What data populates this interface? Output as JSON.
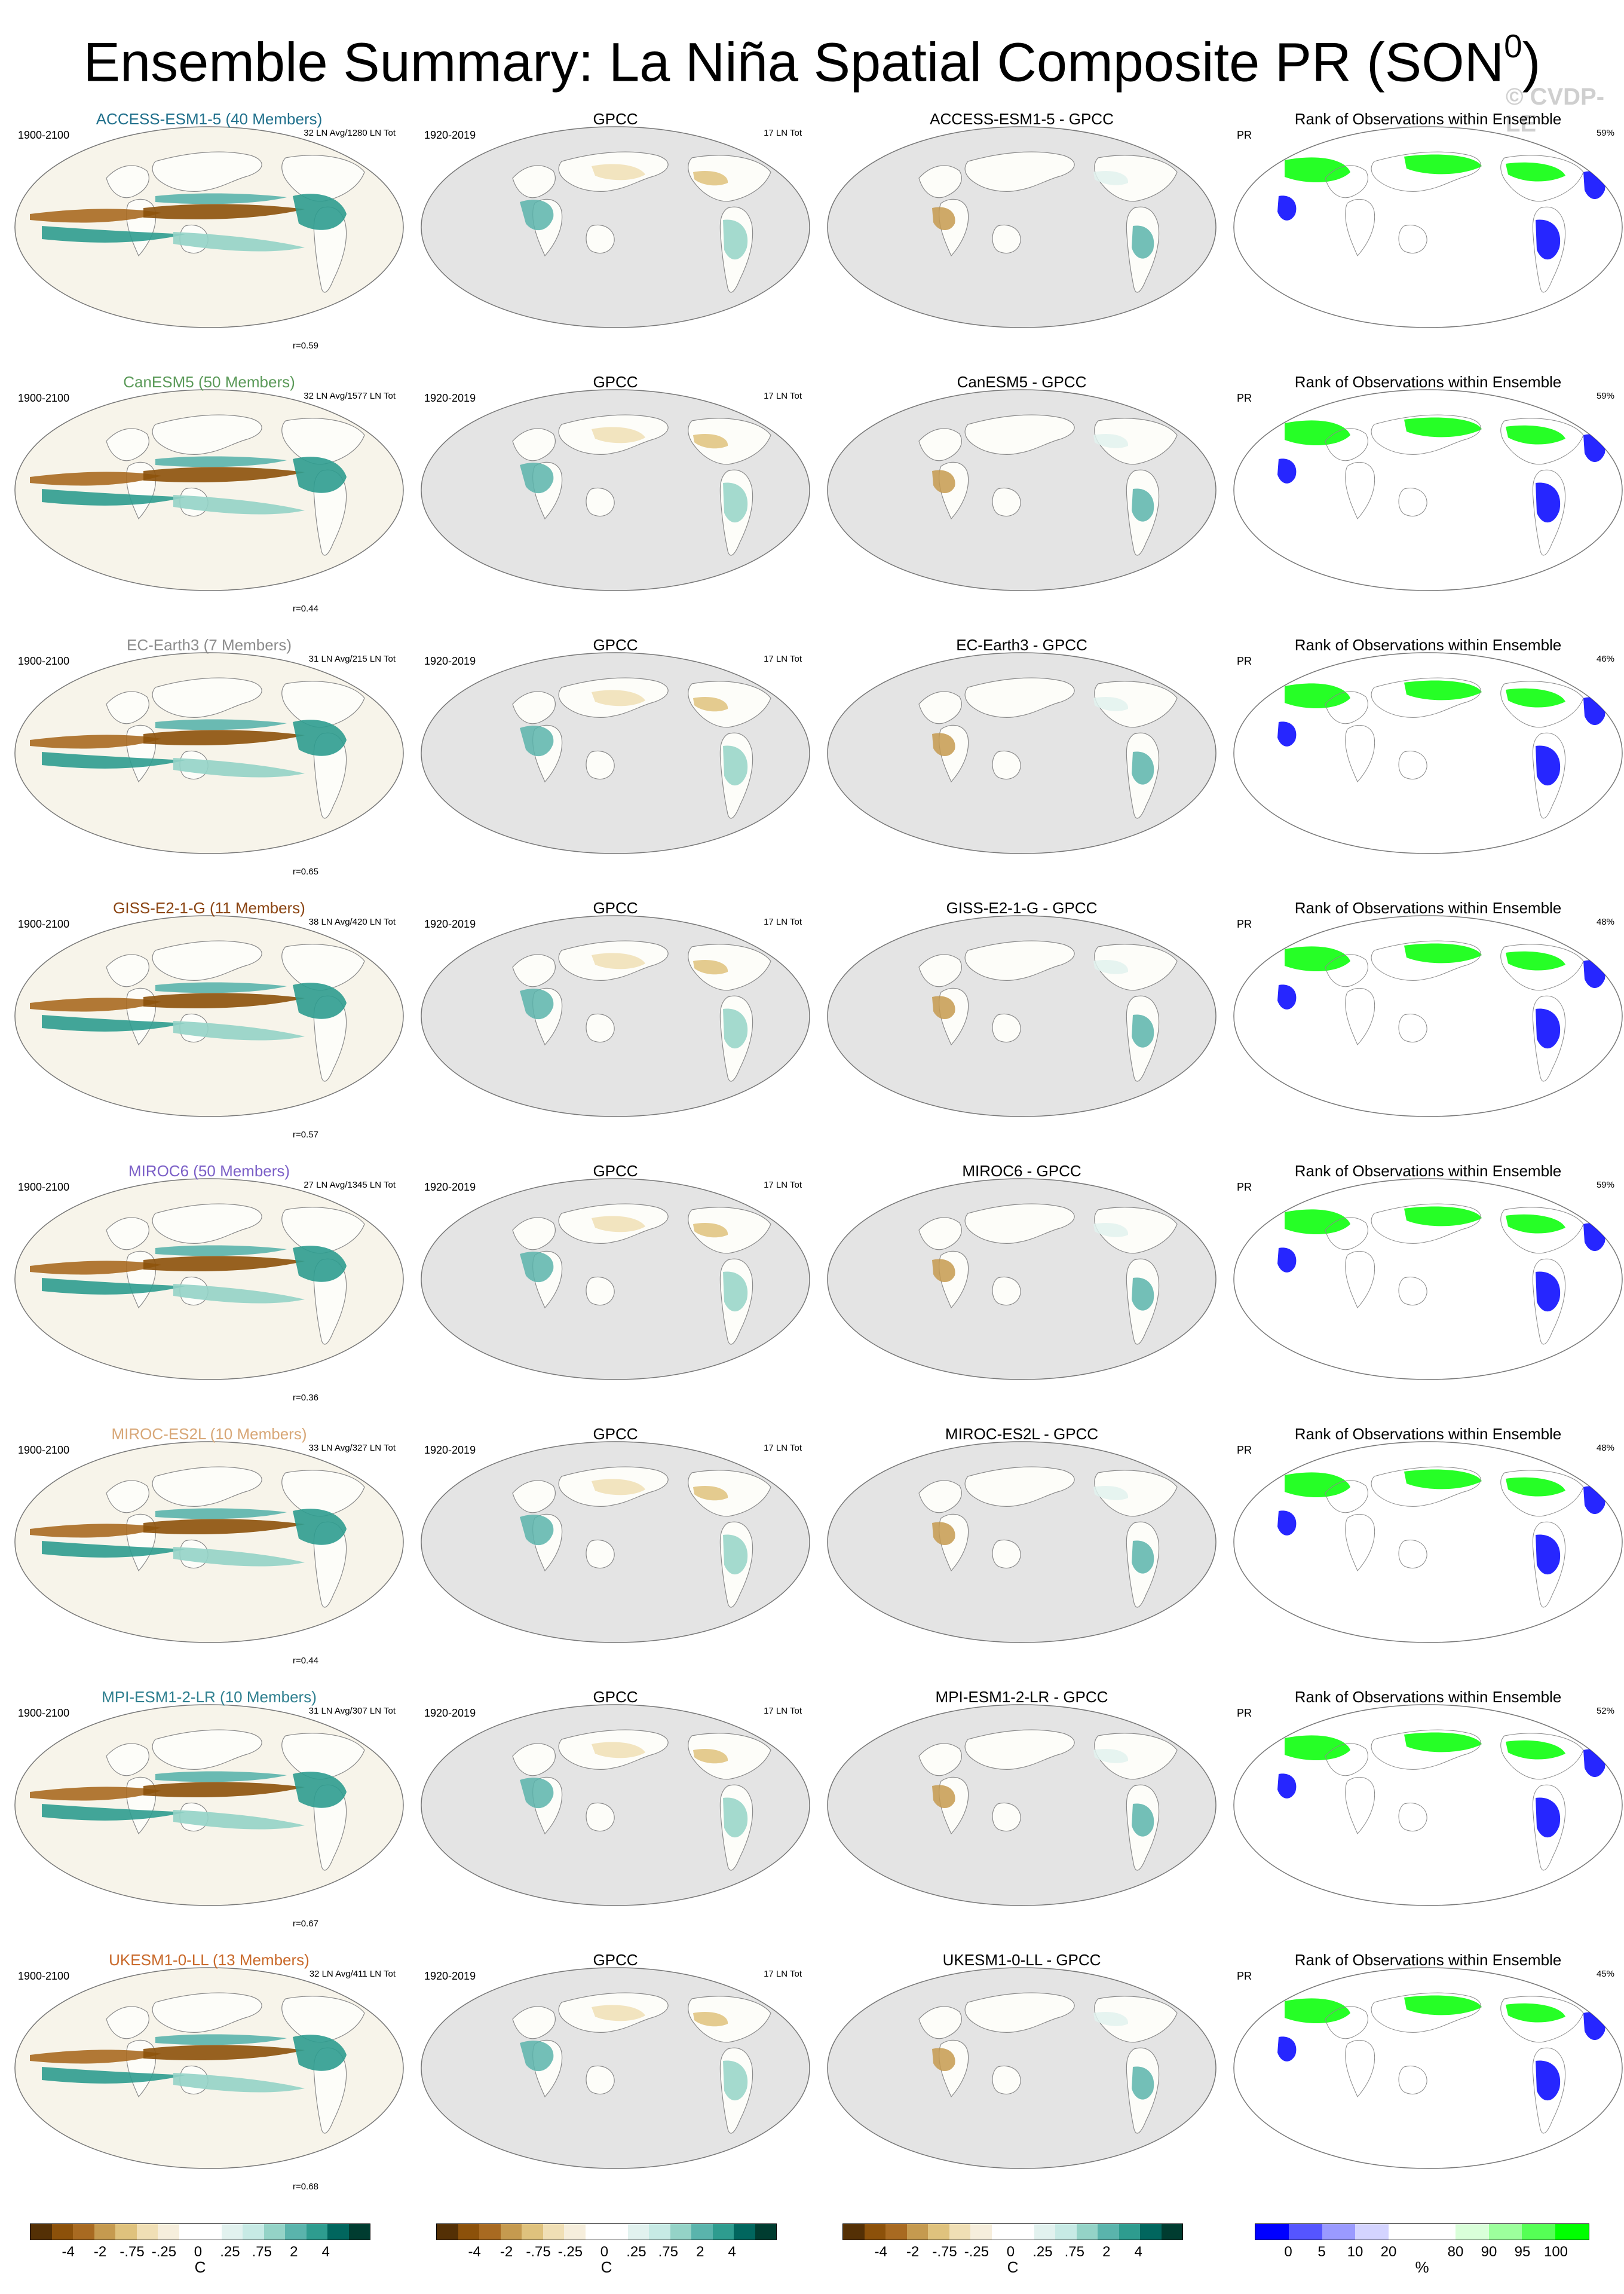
{
  "figure": {
    "title": "Ensemble Summary: La Niña Spatial Composite PR (SON",
    "title_sup": "0",
    "title_close": ")",
    "watermark": "© CVDP-LE",
    "land_color": "#fdfdf9",
    "coast_color": "#8a8a8a"
  },
  "rows": [
    {
      "model": "ACCESS-ESM1-5 (40 Members)",
      "model_color": "#1f6f8b",
      "period": "1900-2100",
      "stats": "32 LN Avg/1280 LN Tot",
      "corr": "r=0.59",
      "diff_title": "ACCESS-ESM1-5 - GPCC",
      "rank_pct": "59%"
    },
    {
      "model": "CanESM5 (50 Members)",
      "model_color": "#5b9a59",
      "period": "1900-2100",
      "stats": "32 LN Avg/1577 LN Tot",
      "corr": "r=0.44",
      "diff_title": "CanESM5 - GPCC",
      "rank_pct": "59%"
    },
    {
      "model": "EC-Earth3 (7 Members)",
      "model_color": "#8c8c8c",
      "period": "1900-2100",
      "stats": "31 LN Avg/215 LN Tot",
      "corr": "r=0.65",
      "diff_title": "EC-Earth3 - GPCC",
      "rank_pct": "46%"
    },
    {
      "model": "GISS-E2-1-G (11 Members)",
      "model_color": "#8b4513",
      "period": "1900-2100",
      "stats": "38 LN Avg/420 LN Tot",
      "corr": "r=0.57",
      "diff_title": "GISS-E2-1-G - GPCC",
      "rank_pct": "48%"
    },
    {
      "model": "MIROC6 (50 Members)",
      "model_color": "#7b5fc7",
      "period": "1900-2100",
      "stats": "27 LN Avg/1345 LN Tot",
      "corr": "r=0.36",
      "diff_title": "MIROC6 - GPCC",
      "rank_pct": "59%"
    },
    {
      "model": "MIROC-ES2L (10 Members)",
      "model_color": "#d8a777",
      "period": "1900-2100",
      "stats": "33 LN Avg/327 LN Tot",
      "corr": "r=0.44",
      "diff_title": "MIROC-ES2L - GPCC",
      "rank_pct": "48%"
    },
    {
      "model": "MPI-ESM1-2-LR (10 Members)",
      "model_color": "#2e7f8f",
      "period": "1900-2100",
      "stats": "31 LN Avg/307 LN Tot",
      "corr": "r=0.67",
      "diff_title": "MPI-ESM1-2-LR - GPCC",
      "rank_pct": "52%"
    },
    {
      "model": "UKESM1-0-LL (13 Members)",
      "model_color": "#c9692a",
      "period": "1900-2100",
      "stats": "32 LN Avg/411 LN Tot",
      "corr": "r=0.68",
      "diff_title": "UKESM1-0-LL - GPCC",
      "rank_pct": "45%"
    }
  ],
  "obs": {
    "title": "GPCC",
    "period": "1920-2019",
    "stats": "17 LN Tot"
  },
  "rank": {
    "title": "Rank of Observations within Ensemble",
    "var": "PR"
  },
  "colorbar_diverging": {
    "labels": [
      "-4",
      "-2",
      "-.75",
      "-.25",
      "0",
      ".25",
      ".75",
      "2",
      "4"
    ],
    "colors": [
      "#543005",
      "#8c510a",
      "#a86a21",
      "#c59a4f",
      "#dfc27d",
      "#f0dfb5",
      "#f6eedc",
      "#ffffff",
      "#ffffff",
      "#e2f2ef",
      "#c7eae5",
      "#94d3c7",
      "#5ab4ac",
      "#2e9c8f",
      "#01665e",
      "#003c30"
    ],
    "unit": "C"
  },
  "colorbar_rank": {
    "labels": [
      "0",
      "5",
      "10",
      "20",
      "80",
      "90",
      "95",
      "100"
    ],
    "colors": [
      "#0000ff",
      "#5555ff",
      "#9a9aff",
      "#d4d4ff",
      "#ffffff",
      "#ffffff",
      "#d9ffd9",
      "#9cff9c",
      "#55ff55",
      "#00ff00"
    ],
    "unit": "%"
  }
}
